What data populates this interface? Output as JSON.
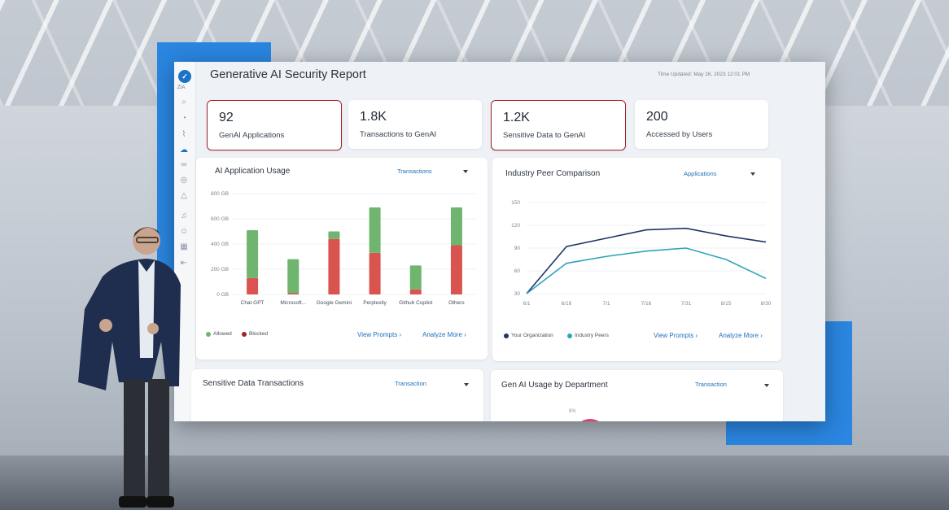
{
  "report": {
    "title": "Generative AI Security Report",
    "time_updated": "Time Updated: May 16, 2023 12:01 PM",
    "sidebar_label": "ZIA"
  },
  "kpis": [
    {
      "value": "92",
      "label": "GenAI Applications",
      "highlighted": true
    },
    {
      "value": "1.8K",
      "label": "Transactions to GenAI",
      "highlighted": false
    },
    {
      "value": "1.2K",
      "label": "Sensitive Data to GenAI",
      "highlighted": true
    },
    {
      "value": "200",
      "label": "Accessed by Users",
      "highlighted": false
    }
  ],
  "usage_card": {
    "title": "AI Application Usage",
    "dropdown": "Transactions",
    "legend_allowed": "Allowed",
    "legend_blocked": "Blocked",
    "view_prompts": "View Prompts",
    "analyze_more": "Analyze More"
  },
  "peer_card": {
    "title": "Industry Peer Comparison",
    "dropdown": "Applications",
    "legend_org": "Your Organization",
    "legend_peers": "Industry Peers",
    "view_prompts": "View Prompts",
    "analyze_more": "Analyze More"
  },
  "sensitive_card": {
    "title": "Sensitive Data Transactions",
    "dropdown": "Transaction"
  },
  "dept_card": {
    "title": "Gen AI Usage by Department",
    "dropdown": "Transaction",
    "pct_label": "8%"
  },
  "chart_data": [
    {
      "type": "bar",
      "stacked": true,
      "title": "AI Application Usage",
      "categories": [
        "Chat GPT",
        "Microsoft...",
        "Google Gemini",
        "Perplexity",
        "Github Copilot",
        "Others"
      ],
      "series": [
        {
          "name": "Blocked",
          "values": [
            130,
            10,
            440,
            330,
            40,
            390
          ],
          "color": "#d9534f"
        },
        {
          "name": "Allowed",
          "values": [
            380,
            270,
            60,
            360,
            190,
            300
          ],
          "color": "#6fb56f"
        }
      ],
      "yticks": [
        "800 GB",
        "600 GB",
        "400 GB",
        "200 GB",
        "0 GB"
      ],
      "ylim": [
        0,
        800
      ]
    },
    {
      "type": "line",
      "title": "Industry Peer Comparison",
      "x": [
        "6/1",
        "6/16",
        "7/1",
        "7/16",
        "7/31",
        "8/15",
        "8/30"
      ],
      "series": [
        {
          "name": "Your Organization",
          "values": [
            30,
            92,
            103,
            114,
            116,
            106,
            98
          ],
          "color": "#1e3566"
        },
        {
          "name": "Industry Peers",
          "values": [
            30,
            70,
            79,
            86,
            90,
            75,
            50
          ],
          "color": "#2fa3b8"
        }
      ],
      "yticks": [
        150,
        120,
        90,
        60,
        30
      ],
      "ylim": [
        30,
        150
      ]
    }
  ]
}
